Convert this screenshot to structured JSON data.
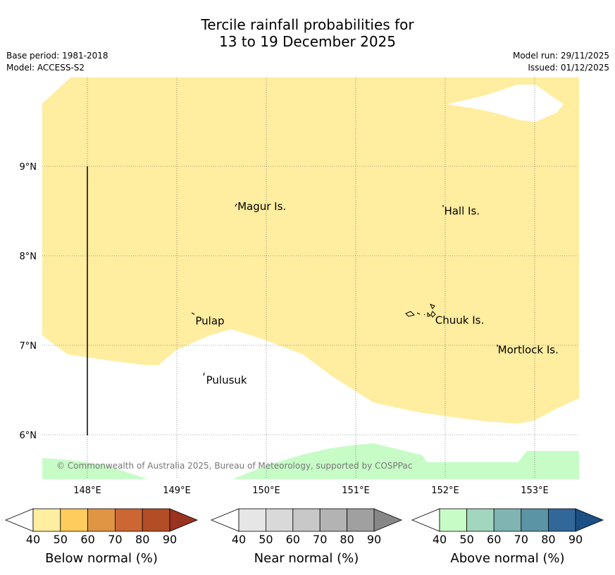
{
  "title": {
    "line1": "Tercile rainfall probabilities for",
    "line2": "13 to 19 December 2025"
  },
  "meta_left": {
    "base_period": "Base period: 1981-2018",
    "model": "Model: ACCESS-S2"
  },
  "meta_right": {
    "model_run": "Model run: 29/11/2025",
    "issued": "Issued: 01/12/2025"
  },
  "map": {
    "lon_range": [
      147.5,
      153.5
    ],
    "lat_range": [
      5.5,
      10.0
    ],
    "lon_ticks": [
      {
        "value": 148,
        "label": "148°E"
      },
      {
        "value": 149,
        "label": "149°E"
      },
      {
        "value": 150,
        "label": "150°E"
      },
      {
        "value": 151,
        "label": "151°E"
      },
      {
        "value": 152,
        "label": "152°E"
      },
      {
        "value": 153,
        "label": "153°E"
      }
    ],
    "lat_ticks": [
      {
        "value": 9,
        "label": "9°N"
      },
      {
        "value": 8,
        "label": "8°N"
      },
      {
        "value": 7,
        "label": "7°N"
      },
      {
        "value": 6,
        "label": "6°N"
      }
    ],
    "places": [
      {
        "name": "Magur Is.",
        "lon": 149.67,
        "lat": 8.55
      },
      {
        "name": "Hall Is.",
        "lon": 151.98,
        "lat": 8.5
      },
      {
        "name": "Pulap",
        "lon": 149.2,
        "lat": 7.27
      },
      {
        "name": "Chuuk Is.",
        "lon": 151.88,
        "lat": 7.28
      },
      {
        "name": "Mortlock Is.",
        "lon": 152.58,
        "lat": 6.95
      },
      {
        "name": "Pulusuk",
        "lon": 149.32,
        "lat": 6.61
      }
    ],
    "copyright": "© Commonwealth of Australia 2025, Bureau of Meteorology, supported by COSPPac",
    "colors": {
      "below_40_50": "#ffeda0",
      "above_40_50": "#c7fcc7"
    }
  },
  "colorbars": [
    {
      "label": "Below normal (%)",
      "ticks": [
        "40",
        "50",
        "60",
        "70",
        "80",
        "90"
      ],
      "colors": [
        "#ffeda0",
        "#fecc5c",
        "#e09545",
        "#cc6633",
        "#b34d26",
        "#993320"
      ]
    },
    {
      "label": "Near normal (%)",
      "ticks": [
        "40",
        "50",
        "60",
        "70",
        "80",
        "90"
      ],
      "colors": [
        "#e6e6e6",
        "#d9d9d9",
        "#c8c8c8",
        "#b3b3b3",
        "#a0a0a0",
        "#878787"
      ]
    },
    {
      "label": "Above normal (%)",
      "ticks": [
        "40",
        "50",
        "60",
        "70",
        "80",
        "90"
      ],
      "colors": [
        "#c7fcc7",
        "#a3d6be",
        "#7fb4b2",
        "#5b94a5",
        "#326799",
        "#1c4f84"
      ]
    }
  ]
}
